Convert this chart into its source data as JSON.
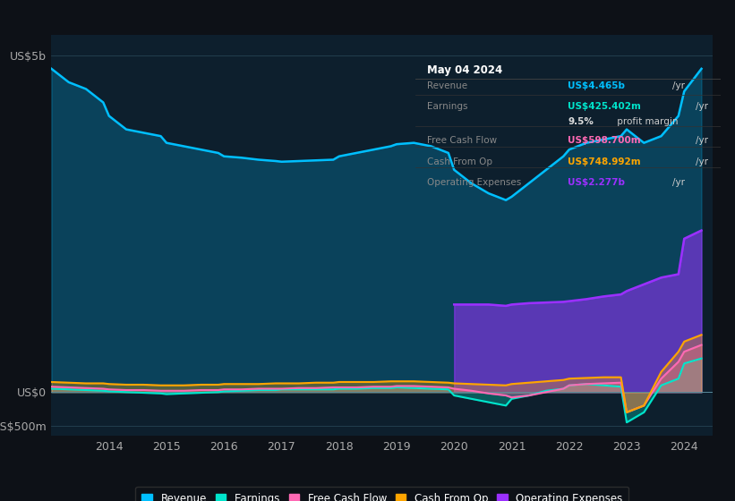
{
  "bg_color": "#0d1117",
  "plot_bg_color": "#0d1f2d",
  "title_box": {
    "date": "May 04 2024",
    "rows": [
      {
        "label": "Revenue",
        "value": "US$4.465b",
        "unit": "/yr",
        "color": "#00bfff"
      },
      {
        "label": "Earnings",
        "value": "US$425.402m",
        "unit": "/yr",
        "color": "#00e5cc"
      },
      {
        "label": "",
        "value": "9.5%",
        "unit": " profit margin",
        "color": "#dddddd"
      },
      {
        "label": "Free Cash Flow",
        "value": "US$598.700m",
        "unit": "/yr",
        "color": "#ff69b4"
      },
      {
        "label": "Cash From Op",
        "value": "US$748.992m",
        "unit": "/yr",
        "color": "#ffa500"
      },
      {
        "label": "Operating Expenses",
        "value": "US$2.277b",
        "unit": "/yr",
        "color": "#9b30ff"
      }
    ]
  },
  "years": [
    2013.0,
    2013.3,
    2013.6,
    2013.9,
    2014.0,
    2014.3,
    2014.6,
    2014.9,
    2015.0,
    2015.3,
    2015.6,
    2015.9,
    2016.0,
    2016.3,
    2016.6,
    2016.9,
    2017.0,
    2017.3,
    2017.6,
    2017.9,
    2018.0,
    2018.3,
    2018.6,
    2018.9,
    2019.0,
    2019.3,
    2019.6,
    2019.9,
    2020.0,
    2020.3,
    2020.6,
    2020.9,
    2021.0,
    2021.3,
    2021.6,
    2021.9,
    2022.0,
    2022.3,
    2022.6,
    2022.9,
    2023.0,
    2023.3,
    2023.6,
    2023.9,
    2024.0,
    2024.3
  ],
  "revenue": [
    4.8,
    4.6,
    4.5,
    4.3,
    4.1,
    3.9,
    3.85,
    3.8,
    3.7,
    3.65,
    3.6,
    3.55,
    3.5,
    3.48,
    3.45,
    3.43,
    3.42,
    3.43,
    3.44,
    3.45,
    3.5,
    3.55,
    3.6,
    3.65,
    3.68,
    3.7,
    3.65,
    3.55,
    3.3,
    3.1,
    2.95,
    2.85,
    2.9,
    3.1,
    3.3,
    3.5,
    3.6,
    3.7,
    3.75,
    3.8,
    3.9,
    3.7,
    3.8,
    4.1,
    4.465,
    4.8
  ],
  "earnings": [
    0.05,
    0.04,
    0.03,
    0.02,
    0.01,
    0.0,
    -0.01,
    -0.02,
    -0.03,
    -0.02,
    -0.01,
    0.0,
    0.01,
    0.02,
    0.03,
    0.03,
    0.04,
    0.04,
    0.04,
    0.04,
    0.05,
    0.05,
    0.06,
    0.06,
    0.07,
    0.06,
    0.05,
    0.04,
    -0.05,
    -0.1,
    -0.15,
    -0.2,
    -0.1,
    -0.05,
    0.02,
    0.05,
    0.1,
    0.12,
    0.1,
    0.08,
    -0.45,
    -0.3,
    0.1,
    0.2,
    0.425,
    0.5
  ],
  "free_cash_flow": [
    0.08,
    0.07,
    0.06,
    0.05,
    0.04,
    0.03,
    0.03,
    0.02,
    0.02,
    0.02,
    0.03,
    0.03,
    0.04,
    0.04,
    0.05,
    0.05,
    0.05,
    0.06,
    0.06,
    0.07,
    0.07,
    0.07,
    0.08,
    0.08,
    0.09,
    0.09,
    0.08,
    0.07,
    0.05,
    0.02,
    -0.02,
    -0.05,
    -0.08,
    -0.05,
    0.0,
    0.05,
    0.1,
    0.12,
    0.13,
    0.14,
    -0.3,
    -0.2,
    0.2,
    0.45,
    0.6,
    0.7
  ],
  "cash_from_op": [
    0.15,
    0.14,
    0.13,
    0.13,
    0.12,
    0.11,
    0.11,
    0.1,
    0.1,
    0.1,
    0.11,
    0.11,
    0.12,
    0.12,
    0.12,
    0.13,
    0.13,
    0.13,
    0.14,
    0.14,
    0.15,
    0.15,
    0.15,
    0.16,
    0.16,
    0.16,
    0.15,
    0.14,
    0.13,
    0.12,
    0.11,
    0.1,
    0.12,
    0.14,
    0.16,
    0.18,
    0.2,
    0.21,
    0.22,
    0.22,
    -0.3,
    -0.2,
    0.3,
    0.6,
    0.75,
    0.85
  ],
  "op_years": [
    2020.0,
    2020.3,
    2020.6,
    2020.9,
    2021.0,
    2021.3,
    2021.6,
    2021.9,
    2022.0,
    2022.3,
    2022.6,
    2022.9,
    2023.0,
    2023.3,
    2023.6,
    2023.9,
    2024.0,
    2024.3
  ],
  "op_expenses": [
    1.3,
    1.3,
    1.3,
    1.28,
    1.3,
    1.32,
    1.33,
    1.34,
    1.35,
    1.38,
    1.42,
    1.45,
    1.5,
    1.6,
    1.7,
    1.75,
    2.277,
    2.4
  ],
  "colors": {
    "revenue": "#00bfff",
    "earnings": "#00e5cc",
    "free_cash_flow": "#ff69b4",
    "cash_from_op": "#ffa500",
    "op_expenses": "#9b30ff"
  },
  "ylim": [
    -0.65,
    5.3
  ],
  "yticks": [
    -0.5,
    0.0,
    5.0
  ],
  "ytick_labels": [
    "-US$500m",
    "US$0",
    "US$5b"
  ],
  "xlim": [
    2013.0,
    2024.5
  ],
  "xtick_positions": [
    2014,
    2015,
    2016,
    2017,
    2018,
    2019,
    2020,
    2021,
    2022,
    2023,
    2024
  ],
  "legend_items": [
    {
      "label": "Revenue",
      "color": "#00bfff"
    },
    {
      "label": "Earnings",
      "color": "#00e5cc"
    },
    {
      "label": "Free Cash Flow",
      "color": "#ff69b4"
    },
    {
      "label": "Cash From Op",
      "color": "#ffa500"
    },
    {
      "label": "Operating Expenses",
      "color": "#9b30ff"
    }
  ]
}
